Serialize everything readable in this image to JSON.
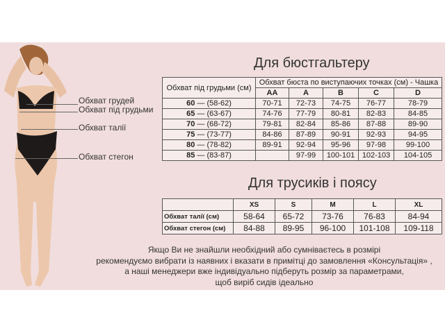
{
  "colors": {
    "background_band": "#f1dddd",
    "table_bg": "#f7ecec",
    "text": "#333333"
  },
  "figure": {
    "icon": "model-in-lingerie-image"
  },
  "measure_labels": [
    "Обхват грудей",
    "Обхват під грудьми",
    "Обхват талії",
    "Обхват стегон"
  ],
  "bra": {
    "title": "Для бюстгальтеру",
    "row_header": "Обхват під грудьми (см)",
    "group_header": "Обхват бюста по виступаючих точках (см) - Чашка",
    "cups": [
      "AA",
      "A",
      "B",
      "C",
      "D"
    ],
    "rows": [
      {
        "band": "60",
        "range": " — (58-62)",
        "values": [
          "70-71",
          "72-73",
          "74-75",
          "76-77",
          "78-79"
        ]
      },
      {
        "band": "65",
        "range": " — (63-67)",
        "values": [
          "74-76",
          "77-79",
          "80-81",
          "82-83",
          "84-85"
        ]
      },
      {
        "band": "70",
        "range": " — (68-72)",
        "values": [
          "79-81",
          "82-84",
          "85-86",
          "87-88",
          "89-90"
        ]
      },
      {
        "band": "75",
        "range": " — (73-77)",
        "values": [
          "84-86",
          "87-89",
          "90-91",
          "92-93",
          "94-95"
        ]
      },
      {
        "band": "80",
        "range": " — (78-82)",
        "values": [
          "89-91",
          "92-94",
          "95-96",
          "97-98",
          "99-100"
        ]
      },
      {
        "band": "85",
        "range": " — (83-87)",
        "values": [
          "",
          "97-99",
          "100-101",
          "102-103",
          "104-105"
        ]
      }
    ]
  },
  "panties": {
    "title": "Для трусиків і поясу",
    "sizes": [
      "XS",
      "S",
      "M",
      "L",
      "XL"
    ],
    "rows": [
      {
        "label": "Обхват талії (см)",
        "values": [
          "58-64",
          "65-72",
          "73-76",
          "76-83",
          "84-94"
        ]
      },
      {
        "label": "Обхват стегон (см)",
        "values": [
          "84-88",
          "89-95",
          "96-100",
          "101-108",
          "109-118"
        ]
      }
    ]
  },
  "note": [
    "Якщо Ви не знайшли необхідний або сумніваєтесь в розмірі",
    "рекомендуємо вибрати із наявних і вказати в примітці до замовлення «Консультація» ,",
    "а наші менеджери вже індивідуально підберуть розмір за параметрами,",
    "щоб виріб сидів ідеально"
  ]
}
